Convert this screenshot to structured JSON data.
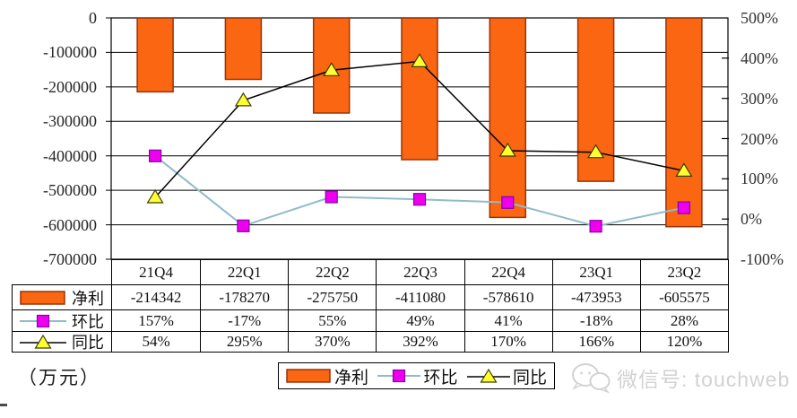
{
  "chart_data": {
    "type": "bar+line combo, dual y-axes",
    "categories": [
      "21Q4",
      "22Q1",
      "22Q2",
      "22Q3",
      "22Q4",
      "23Q1",
      "23Q2"
    ],
    "series": [
      {
        "name": "净利",
        "type": "bar",
        "axis": "left",
        "color": "#FA6611",
        "border_color": "#993308",
        "values": [
          -214342,
          -178270,
          -275750,
          -411080,
          -578610,
          -473953,
          -605575
        ]
      },
      {
        "name": "环比",
        "type": "line",
        "axis": "right",
        "color": "#8FBCC9",
        "marker": "square",
        "marker_color": "#EE00EE",
        "marker_border": "#8800AA",
        "values_percent": [
          157,
          -17,
          55,
          49,
          41,
          -18,
          28
        ]
      },
      {
        "name": "同比",
        "type": "line",
        "axis": "right",
        "color": "#000000",
        "marker": "triangle",
        "marker_color": "#FFFF33",
        "marker_border": "#3d3d00",
        "values_percent": [
          54,
          295,
          370,
          392,
          170,
          166,
          120
        ]
      }
    ],
    "left_axis": {
      "max": 0,
      "min": -700000,
      "tick_labels": [
        "0",
        "-100000",
        "-200000",
        "-300000",
        "-400000",
        "-500000",
        "-600000",
        "-700000"
      ]
    },
    "right_axis": {
      "max": 500,
      "min": -100,
      "tick_labels": [
        "500%",
        "400%",
        "300%",
        "200%",
        "100%",
        "0%",
        "-100%"
      ]
    },
    "grid": "horizontal gridlines on",
    "legend_position": "bottom",
    "title": "",
    "xlabel": "",
    "ylabel": ""
  },
  "table": {
    "column_headers": [
      "21Q4",
      "22Q1",
      "22Q2",
      "22Q3",
      "22Q4",
      "23Q1",
      "23Q2"
    ],
    "rows": [
      {
        "label": "净利",
        "cells": [
          "-214342",
          "-178270",
          "-275750",
          "-411080",
          "-578610",
          "-473953",
          "-605575"
        ]
      },
      {
        "label": "环比",
        "cells": [
          "157%",
          "-17%",
          "55%",
          "49%",
          "41%",
          "-18%",
          "28%"
        ]
      },
      {
        "label": "同比",
        "cells": [
          "54%",
          "295%",
          "370%",
          "392%",
          "170%",
          "166%",
          "120%"
        ]
      }
    ]
  },
  "legend": {
    "items": [
      {
        "label": "净利",
        "swatch": "orange-bar"
      },
      {
        "label": "环比",
        "swatch": "magenta-square-on-blue-line"
      },
      {
        "label": "同比",
        "swatch": "yellow-triangle-on-black-line"
      }
    ]
  },
  "unit_label": "（万元）",
  "watermark": {
    "text": "微信号: touchweb",
    "icon": "wechat-icon"
  }
}
